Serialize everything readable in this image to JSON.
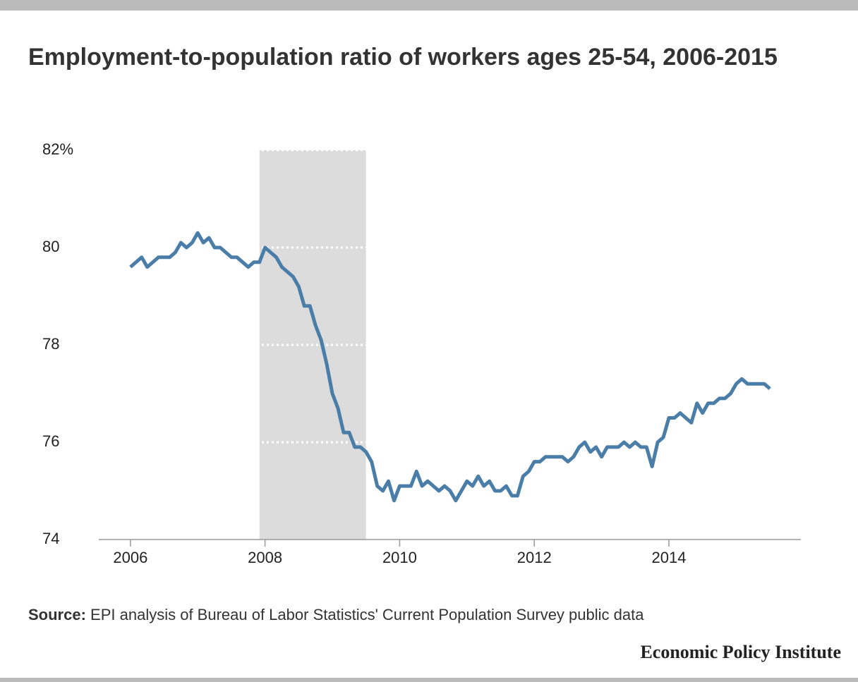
{
  "chart_data": {
    "type": "line",
    "title": "Employment-to-population ratio of workers ages 25-54, 2006-2015",
    "source_label": "Source:",
    "source": "EPI analysis of  Bureau of Labor Statistics' Current Population Survey public data",
    "brand": "Economic Policy Institute",
    "x": [
      2006,
      2006.083,
      2006.167,
      2006.25,
      2006.333,
      2006.417,
      2006.5,
      2006.583,
      2006.667,
      2006.75,
      2006.833,
      2006.917,
      2007,
      2007.083,
      2007.167,
      2007.25,
      2007.333,
      2007.417,
      2007.5,
      2007.583,
      2007.667,
      2007.75,
      2007.833,
      2007.917,
      2008,
      2008.083,
      2008.167,
      2008.25,
      2008.333,
      2008.417,
      2008.5,
      2008.583,
      2008.667,
      2008.75,
      2008.833,
      2008.917,
      2009,
      2009.083,
      2009.167,
      2009.25,
      2009.333,
      2009.417,
      2009.5,
      2009.583,
      2009.667,
      2009.75,
      2009.833,
      2009.917,
      2010,
      2010.083,
      2010.167,
      2010.25,
      2010.333,
      2010.417,
      2010.5,
      2010.583,
      2010.667,
      2010.75,
      2010.833,
      2010.917,
      2011,
      2011.083,
      2011.167,
      2011.25,
      2011.333,
      2011.417,
      2011.5,
      2011.583,
      2011.667,
      2011.75,
      2011.833,
      2011.917,
      2012,
      2012.083,
      2012.167,
      2012.25,
      2012.333,
      2012.417,
      2012.5,
      2012.583,
      2012.667,
      2012.75,
      2012.833,
      2012.917,
      2013,
      2013.083,
      2013.167,
      2013.25,
      2013.333,
      2013.417,
      2013.5,
      2013.583,
      2013.667,
      2013.75,
      2013.833,
      2013.917,
      2014,
      2014.083,
      2014.167,
      2014.25,
      2014.333,
      2014.417,
      2014.5,
      2014.583,
      2014.667,
      2014.75,
      2014.833,
      2014.917,
      2015,
      2015.083,
      2015.167,
      2015.25,
      2015.333,
      2015.417,
      2015.5
    ],
    "series": [
      {
        "color": "#4a7ea8",
        "values": [
          79.6,
          79.7,
          79.8,
          79.6,
          79.7,
          79.8,
          79.8,
          79.8,
          79.9,
          80.1,
          80.0,
          80.1,
          80.3,
          80.1,
          80.2,
          80.0,
          80.0,
          79.9,
          79.8,
          79.8,
          79.7,
          79.6,
          79.7,
          79.7,
          80.0,
          79.9,
          79.8,
          79.6,
          79.5,
          79.4,
          79.2,
          78.8,
          78.8,
          78.4,
          78.1,
          77.6,
          77.0,
          76.7,
          76.2,
          76.2,
          75.9,
          75.9,
          75.8,
          75.6,
          75.1,
          75.0,
          75.2,
          74.8,
          75.1,
          75.1,
          75.1,
          75.4,
          75.1,
          75.2,
          75.1,
          75.0,
          75.1,
          75.0,
          74.8,
          75.0,
          75.2,
          75.1,
          75.3,
          75.1,
          75.2,
          75.0,
          75.0,
          75.1,
          74.9,
          74.9,
          75.3,
          75.4,
          75.6,
          75.6,
          75.7,
          75.7,
          75.7,
          75.7,
          75.6,
          75.7,
          75.9,
          76.0,
          75.8,
          75.9,
          75.7,
          75.9,
          75.9,
          75.9,
          76.0,
          75.9,
          76.0,
          75.9,
          75.9,
          75.5,
          76.0,
          76.1,
          76.5,
          76.5,
          76.6,
          76.5,
          76.4,
          76.8,
          76.6,
          76.8,
          76.8,
          76.9,
          76.9,
          77.0,
          77.2,
          77.3,
          77.2,
          77.2,
          77.2,
          77.2,
          77.1
        ]
      }
    ],
    "shaded_range": [
      2007.917,
      2009.5
    ],
    "shade_color": "#dcdcdc",
    "xlim": [
      2005.53,
      2015.96
    ],
    "xticks": [
      2006,
      2008,
      2010,
      2012,
      2014
    ],
    "ylim": [
      74,
      82
    ],
    "yticks": [
      74,
      76,
      78,
      80,
      {
        "value": 82,
        "label": "82%"
      }
    ],
    "grid": true
  }
}
